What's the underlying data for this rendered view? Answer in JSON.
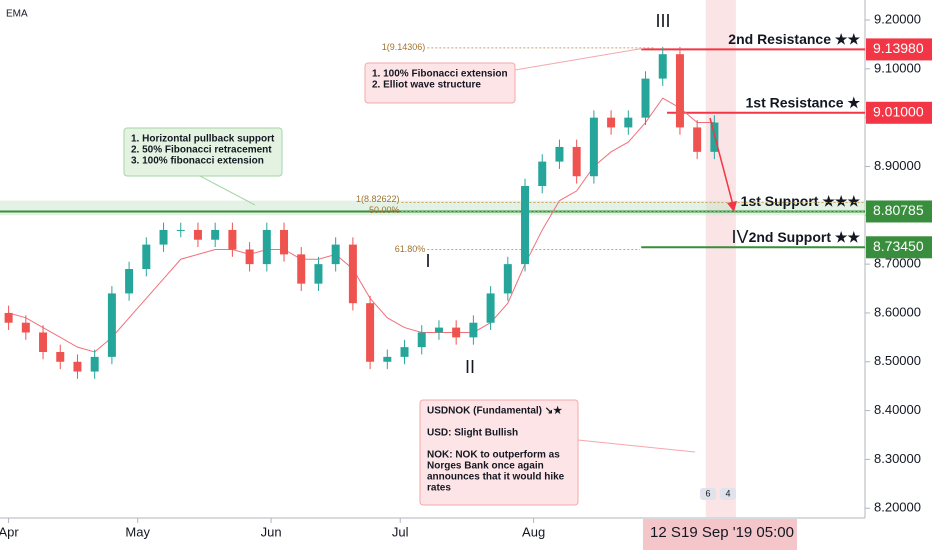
{
  "chart_data": {
    "type": "candlestick",
    "indicator": "EMA",
    "x": [
      0,
      4,
      8,
      12,
      16,
      20,
      24,
      28,
      32,
      36,
      40,
      44,
      48,
      52,
      56,
      60,
      64,
      68,
      72,
      76,
      80,
      84,
      88,
      92,
      96,
      100,
      104,
      108,
      112,
      116,
      120,
      124,
      128,
      132,
      136,
      140,
      144,
      148,
      152,
      156,
      160,
      164
    ],
    "open": [
      8.6,
      8.58,
      8.56,
      8.52,
      8.5,
      8.48,
      8.51,
      8.64,
      8.69,
      8.74,
      8.77,
      8.77,
      8.75,
      8.77,
      8.73,
      8.7,
      8.77,
      8.72,
      8.66,
      8.7,
      8.74,
      8.62,
      8.5,
      8.51,
      8.53,
      8.56,
      8.57,
      8.55,
      8.58,
      8.64,
      8.7,
      8.86,
      8.91,
      8.94,
      8.88,
      9.0,
      8.98,
      9.0,
      9.08,
      9.13,
      8.98,
      8.93
    ],
    "high": [
      8.615,
      8.595,
      8.575,
      8.535,
      8.515,
      8.525,
      8.655,
      8.705,
      8.755,
      8.785,
      8.785,
      8.785,
      8.785,
      8.785,
      8.745,
      8.785,
      8.785,
      8.735,
      8.715,
      8.755,
      8.755,
      8.635,
      8.525,
      8.545,
      8.575,
      8.585,
      8.585,
      8.595,
      8.655,
      8.715,
      8.875,
      8.925,
      8.955,
      8.955,
      9.015,
      9.015,
      9.015,
      9.095,
      9.145,
      9.145,
      8.995,
      9.005
    ],
    "low": [
      8.565,
      8.545,
      8.505,
      8.485,
      8.465,
      8.465,
      8.495,
      8.625,
      8.675,
      8.725,
      8.755,
      8.735,
      8.735,
      8.715,
      8.685,
      8.685,
      8.705,
      8.645,
      8.645,
      8.685,
      8.605,
      8.485,
      8.485,
      8.495,
      8.515,
      8.545,
      8.535,
      8.535,
      8.565,
      8.625,
      8.685,
      8.845,
      8.895,
      8.865,
      8.865,
      8.965,
      8.965,
      8.985,
      9.065,
      8.965,
      8.915,
      8.915
    ],
    "close": [
      8.58,
      8.56,
      8.52,
      8.5,
      8.48,
      8.51,
      8.64,
      8.69,
      8.74,
      8.77,
      8.77,
      8.75,
      8.77,
      8.73,
      8.7,
      8.77,
      8.72,
      8.66,
      8.7,
      8.74,
      8.62,
      8.5,
      8.51,
      8.53,
      8.56,
      8.57,
      8.55,
      8.58,
      8.64,
      8.7,
      8.86,
      8.91,
      8.94,
      8.88,
      9.0,
      8.98,
      9.0,
      9.08,
      9.13,
      8.98,
      8.93,
      8.99
    ],
    "ema": [
      8.6,
      8.59,
      8.57,
      8.55,
      8.53,
      8.52,
      8.55,
      8.59,
      8.63,
      8.67,
      8.71,
      8.72,
      8.73,
      8.73,
      8.72,
      8.73,
      8.73,
      8.71,
      8.71,
      8.72,
      8.69,
      8.63,
      8.59,
      8.57,
      8.56,
      8.56,
      8.56,
      8.56,
      8.58,
      8.62,
      8.7,
      8.77,
      8.83,
      8.85,
      8.9,
      8.93,
      8.95,
      8.99,
      9.04,
      9.02,
      8.99,
      8.99
    ],
    "up_color": "#26a69a",
    "down_color": "#ef5350",
    "ema_color": "#f0707a",
    "xlim": [
      -2,
      199
    ],
    "xticks": [
      {
        "value": 0,
        "label": "Apr"
      },
      {
        "value": 30,
        "label": "May"
      },
      {
        "value": 61,
        "label": "Jun"
      },
      {
        "value": 91,
        "label": "Jul"
      },
      {
        "value": 122,
        "label": "Aug"
      }
    ],
    "ylim": [
      8.18,
      9.241
    ],
    "yticks": [
      {
        "value": 9.2,
        "label": "9.20000"
      },
      {
        "value": 9.1,
        "label": "9.10000"
      },
      {
        "value": 9.0,
        "label": "9.00000"
      },
      {
        "value": 8.9,
        "label": "8.90000"
      },
      {
        "value": 8.8,
        "label": "8.80000"
      },
      {
        "value": 8.7,
        "label": "8.70000"
      },
      {
        "value": 8.6,
        "label": "8.60000"
      },
      {
        "value": 8.5,
        "label": "8.50000"
      },
      {
        "value": 8.4,
        "label": "8.40000"
      },
      {
        "value": 8.3,
        "label": "8.30000"
      },
      {
        "value": 8.2,
        "label": "8.20000"
      }
    ],
    "levels": [
      {
        "name": "2nd Resistance ★★",
        "value": 9.1398,
        "value_label": "9.13980",
        "color": "#f23645",
        "x_from": 147
      },
      {
        "name": "1st Resistance ★",
        "value": 9.01,
        "value_label": "9.01000",
        "color": "#f23645",
        "x_from": 153
      },
      {
        "name": "1st Support ★★★",
        "value": 8.80785,
        "value_label": "8.80785",
        "color": "#388e3c",
        "name_color": "#8fbc8f",
        "x_from": -2,
        "band": [
          8.8,
          8.83
        ]
      },
      {
        "name": "2nd Support ★★",
        "value": 8.7345,
        "value_label": "8.73450",
        "color": "#388e3c",
        "x_from": 147
      }
    ],
    "fib": [
      {
        "label": "1(9.14306)",
        "value": 9.14306,
        "x_from": 88
      },
      {
        "label": "1(8.82622)",
        "value": 8.82622,
        "x_from": 82
      },
      {
        "label": "50.00%",
        "value": 8.8078,
        "x_from": 82
      },
      {
        "label": "61.80%",
        "value": 8.73,
        "x_from": 88
      }
    ],
    "waves": [
      "I",
      "II",
      "III",
      "IV"
    ],
    "callouts": [
      {
        "lines": [
          "1. 100% Fibonacci extension",
          "2. Elliot wave structure"
        ]
      },
      {
        "lines": [
          "1. Horizontal pullback support",
          "2. 50% Fibonacci retracement",
          "3. 100% fibonacci extension"
        ]
      },
      {
        "lines": [
          "USDNOK (Fundamental) ↘★",
          "",
          "USD: Slight Bullish",
          "",
          "NOK: NOK to outperform as",
          "Norges Bank once again",
          "announces that it would hike",
          "rates"
        ]
      }
    ],
    "highlight_x": [
      162,
      169
    ],
    "crosshair_labels": [
      "12 S",
      "19 Sep '19   05:00"
    ],
    "badges": [
      "6",
      "4"
    ]
  }
}
